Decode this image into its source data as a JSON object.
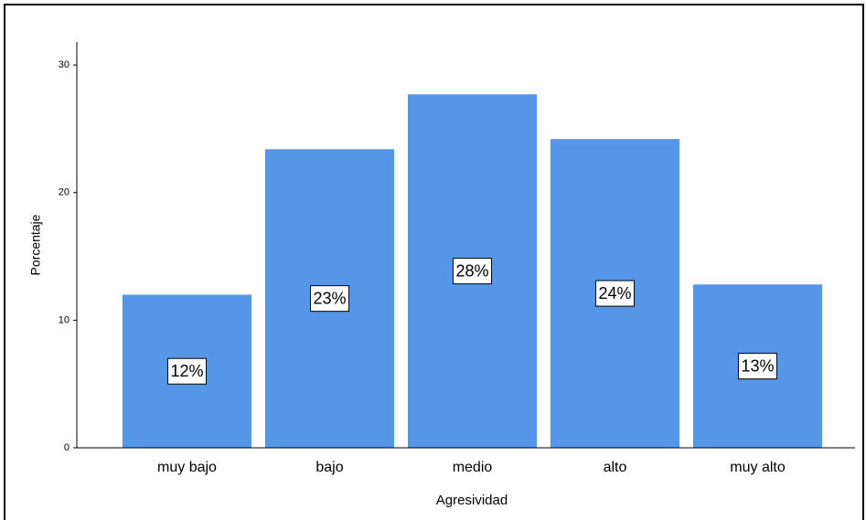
{
  "chart_data": {
    "type": "bar",
    "x_label": "Agresividad",
    "y_label": "Porcentaje",
    "categories": [
      "muy bajo",
      "bajo",
      "medio",
      "alto",
      "muy alto"
    ],
    "values": [
      12.0,
      23.4,
      27.7,
      24.2,
      12.8
    ],
    "value_labels": [
      "12%",
      "23%",
      "28%",
      "24%",
      "13%"
    ],
    "color": "#5596e6",
    "ylim": [
      0,
      31.8
    ],
    "yticks": [
      0,
      10,
      20,
      30
    ],
    "grid": false
  }
}
